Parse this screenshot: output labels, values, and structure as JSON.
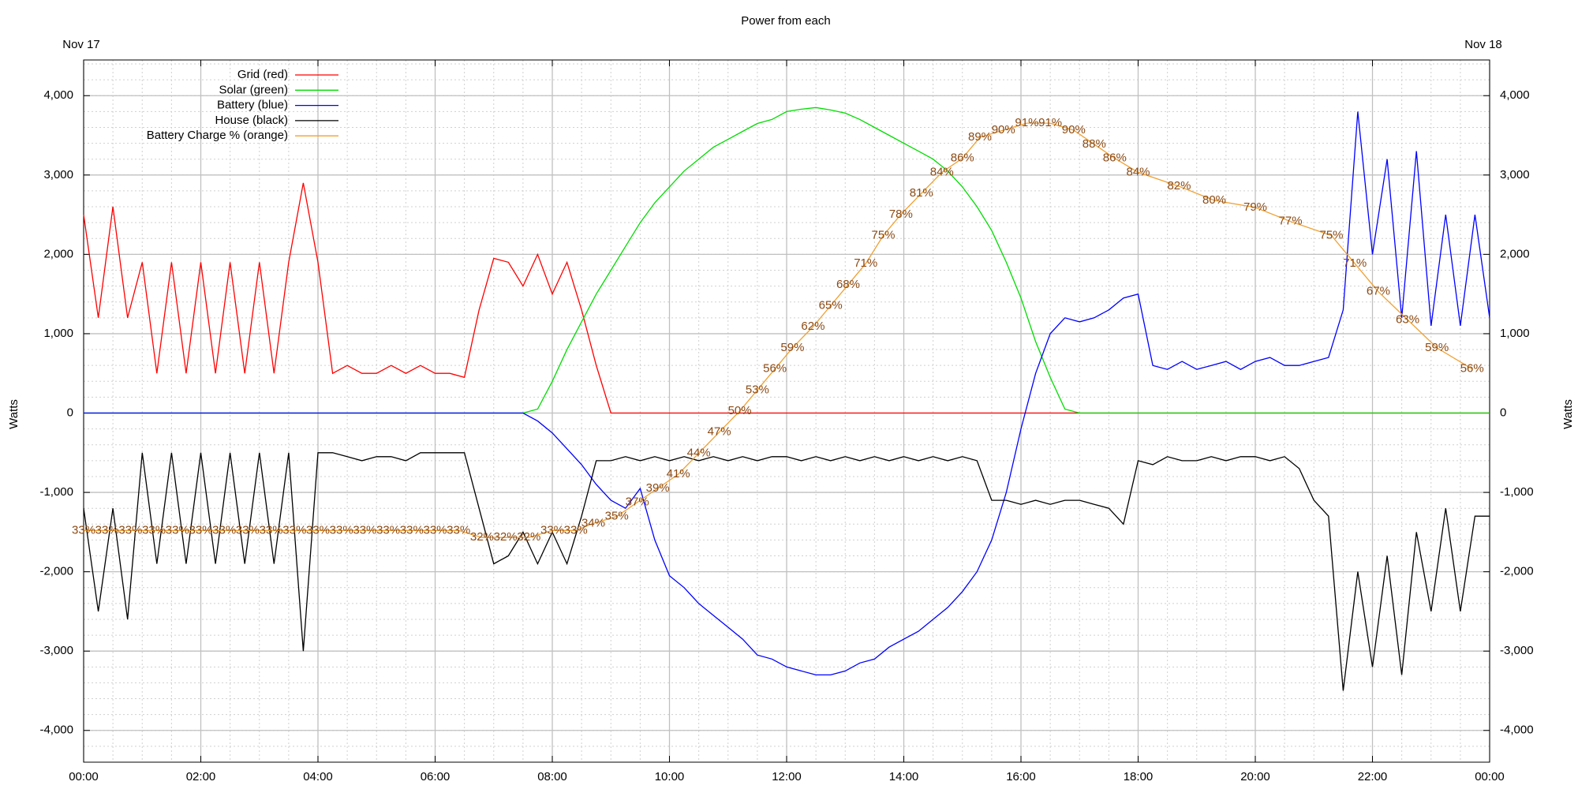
{
  "chart_data": {
    "type": "line",
    "title": "Power from each",
    "start_date": "Nov 17",
    "end_date": "Nov 18",
    "y_label": "Watts",
    "y2_label": "Watts",
    "grid": true,
    "legend_position": "top-left",
    "xlim": [
      0,
      24
    ],
    "xticks": [
      {
        "value": 0,
        "label": "00:00"
      },
      {
        "value": 2,
        "label": "02:00"
      },
      {
        "value": 4,
        "label": "04:00"
      },
      {
        "value": 6,
        "label": "06:00"
      },
      {
        "value": 8,
        "label": "08:00"
      },
      {
        "value": 10,
        "label": "10:00"
      },
      {
        "value": 12,
        "label": "12:00"
      },
      {
        "value": 14,
        "label": "14:00"
      },
      {
        "value": 16,
        "label": "16:00"
      },
      {
        "value": 18,
        "label": "18:00"
      },
      {
        "value": 20,
        "label": "20:00"
      },
      {
        "value": 22,
        "label": "22:00"
      },
      {
        "value": 24,
        "label": "00:00"
      }
    ],
    "xminor_step": 0.5,
    "ylim": [
      -4400,
      4450
    ],
    "yticks": [
      {
        "value": -4000,
        "label": "-4,000"
      },
      {
        "value": -3000,
        "label": "-3,000"
      },
      {
        "value": -2000,
        "label": "-2,000"
      },
      {
        "value": -1000,
        "label": "-1,000"
      },
      0,
      {
        "value": 1000,
        "label": "1,000"
      },
      {
        "value": 2000,
        "label": "2,000"
      },
      {
        "value": 3000,
        "label": "3,000"
      },
      {
        "value": 4000,
        "label": "4,000"
      }
    ],
    "y2lim": [
      -4400,
      4450
    ],
    "y2ticks": [
      {
        "value": -4000,
        "label": "-4,000"
      },
      {
        "value": -3000,
        "label": "-3,000"
      },
      {
        "value": -2000,
        "label": "-2,000"
      },
      {
        "value": -1000,
        "label": "-1,000"
      },
      0,
      {
        "value": 1000,
        "label": "1,000"
      },
      {
        "value": 2000,
        "label": "2,000"
      },
      {
        "value": 3000,
        "label": "3,000"
      },
      {
        "value": 4000,
        "label": "4,000"
      }
    ],
    "yminor_step": 200,
    "y3lim": [
      0,
      100
    ],
    "x": [
      0,
      0.25,
      0.5,
      0.75,
      1,
      1.25,
      1.5,
      1.75,
      2,
      2.25,
      2.5,
      2.75,
      3,
      3.25,
      3.5,
      3.75,
      4,
      4.25,
      4.5,
      4.75,
      5,
      5.25,
      5.5,
      5.75,
      6,
      6.25,
      6.5,
      6.75,
      7,
      7.25,
      7.5,
      7.75,
      8,
      8.25,
      8.5,
      8.75,
      9,
      9.25,
      9.5,
      9.75,
      10,
      10.25,
      10.5,
      10.75,
      11,
      11.25,
      11.5,
      11.75,
      12,
      12.25,
      12.5,
      12.75,
      13,
      13.25,
      13.5,
      13.75,
      14,
      14.25,
      14.5,
      14.75,
      15,
      15.25,
      15.5,
      15.75,
      16,
      16.25,
      16.5,
      16.75,
      17,
      17.25,
      17.5,
      17.75,
      18,
      18.25,
      18.5,
      18.75,
      19,
      19.25,
      19.5,
      19.75,
      20,
      20.25,
      20.5,
      20.75,
      21,
      21.25,
      21.5,
      21.75,
      22,
      22.25,
      22.5,
      22.75,
      23,
      23.25,
      23.5,
      23.75,
      24
    ],
    "series": [
      {
        "name": "Grid (red)",
        "color": "#ff0000",
        "values": [
          2500,
          1200,
          2600,
          1200,
          1900,
          500,
          1900,
          500,
          1900,
          500,
          1900,
          500,
          1900,
          500,
          1900,
          2900,
          1900,
          500,
          600,
          500,
          500,
          600,
          500,
          600,
          500,
          500,
          450,
          1300,
          1950,
          1900,
          1600,
          2000,
          1500,
          1900,
          1300,
          600,
          0,
          0,
          0,
          0,
          0,
          0,
          0,
          0,
          0,
          0,
          0,
          0,
          0,
          0,
          0,
          0,
          0,
          0,
          0,
          0,
          0,
          0,
          0,
          0,
          0,
          0,
          0,
          0,
          0,
          0,
          0,
          0,
          0,
          0,
          0,
          0,
          0,
          0,
          0,
          0,
          0,
          0,
          0,
          0,
          0,
          0,
          0,
          0,
          0,
          0,
          0,
          0,
          0,
          0,
          0,
          0,
          0,
          0,
          0,
          0,
          0
        ]
      },
      {
        "name": "Solar (green)",
        "color": "#00dd00",
        "values": [
          0,
          0,
          0,
          0,
          0,
          0,
          0,
          0,
          0,
          0,
          0,
          0,
          0,
          0,
          0,
          0,
          0,
          0,
          0,
          0,
          0,
          0,
          0,
          0,
          0,
          0,
          0,
          0,
          0,
          0,
          0,
          50,
          400,
          800,
          1150,
          1500,
          1800,
          2100,
          2400,
          2650,
          2850,
          3050,
          3200,
          3350,
          3450,
          3550,
          3650,
          3700,
          3800,
          3830,
          3850,
          3820,
          3780,
          3700,
          3600,
          3500,
          3400,
          3300,
          3200,
          3050,
          2850,
          2600,
          2300,
          1900,
          1450,
          900,
          450,
          50,
          0,
          0,
          0,
          0,
          0,
          0,
          0,
          0,
          0,
          0,
          0,
          0,
          0,
          0,
          0,
          0,
          0,
          0,
          0,
          0,
          0,
          0,
          0,
          0,
          0,
          0,
          0,
          0,
          0
        ]
      },
      {
        "name": "Battery (blue)",
        "color": "#0000ff",
        "values": [
          0,
          0,
          0,
          0,
          0,
          0,
          0,
          0,
          0,
          0,
          0,
          0,
          0,
          0,
          0,
          0,
          0,
          0,
          0,
          0,
          0,
          0,
          0,
          0,
          0,
          0,
          0,
          0,
          0,
          0,
          0,
          -100,
          -250,
          -450,
          -650,
          -900,
          -1100,
          -1200,
          -950,
          -1600,
          -2050,
          -2200,
          -2400,
          -2550,
          -2700,
          -2850,
          -3050,
          -3100,
          -3200,
          -3250,
          -3300,
          -3300,
          -3250,
          -3150,
          -3100,
          -2950,
          -2850,
          -2750,
          -2600,
          -2450,
          -2250,
          -2000,
          -1600,
          -1000,
          -200,
          500,
          1000,
          1200,
          1150,
          1200,
          1300,
          1450,
          1500,
          600,
          550,
          650,
          550,
          600,
          650,
          550,
          650,
          700,
          600,
          600,
          650,
          700,
          1300,
          3800,
          2000,
          3200,
          1200,
          3300,
          1100,
          2500,
          1100,
          2500,
          1200
        ]
      },
      {
        "name": "House (black)",
        "color": "#000000",
        "values": [
          -1200,
          -2500,
          -1200,
          -2600,
          -500,
          -1900,
          -500,
          -1900,
          -500,
          -1900,
          -500,
          -1900,
          -500,
          -1900,
          -500,
          -3000,
          -500,
          -500,
          -550,
          -600,
          -550,
          -550,
          -600,
          -500,
          -500,
          -500,
          -500,
          -1200,
          -1900,
          -1800,
          -1500,
          -1900,
          -1500,
          -1900,
          -1300,
          -600,
          -600,
          -550,
          -600,
          -550,
          -600,
          -550,
          -600,
          -550,
          -600,
          -550,
          -600,
          -550,
          -550,
          -600,
          -550,
          -600,
          -550,
          -600,
          -550,
          -600,
          -550,
          -600,
          -550,
          -600,
          -550,
          -600,
          -1100,
          -1100,
          -1150,
          -1100,
          -1150,
          -1100,
          -1100,
          -1150,
          -1200,
          -1400,
          -600,
          -650,
          -550,
          -600,
          -600,
          -550,
          -600,
          -550,
          -550,
          -600,
          -550,
          -700,
          -1100,
          -1300,
          -3500,
          -2000,
          -3200,
          -1800,
          -3300,
          -1500,
          -2500,
          -1200,
          -2500,
          -1300,
          -1300
        ]
      },
      {
        "name": "Battery Charge % (orange)",
        "color": "#f0a030",
        "label_color": "#8b4a14",
        "axis": "y3",
        "x": [
          0,
          0.4,
          0.8,
          1.2,
          1.6,
          2,
          2.4,
          2.8,
          3.2,
          3.6,
          4,
          4.4,
          4.8,
          5.2,
          5.6,
          6,
          6.4,
          6.8,
          7.2,
          7.6,
          8,
          8.4,
          8.7,
          9.1,
          9.45,
          9.8,
          10.15,
          10.5,
          10.85,
          11.2,
          11.5,
          11.8,
          12.1,
          12.45,
          12.75,
          13.05,
          13.35,
          13.65,
          13.95,
          14.3,
          14.65,
          15,
          15.3,
          15.7,
          16.1,
          16.5,
          16.9,
          17.25,
          17.6,
          18,
          18.7,
          19.3,
          20,
          20.6,
          21.3,
          21.7,
          22.1,
          22.6,
          23.1,
          23.7
        ],
        "values": [
          33,
          33,
          33,
          33,
          33,
          33,
          33,
          33,
          33,
          33,
          33,
          33,
          33,
          33,
          33,
          33,
          33,
          32,
          32,
          32,
          33,
          33,
          34,
          35,
          37,
          39,
          41,
          44,
          47,
          50,
          53,
          56,
          59,
          62,
          65,
          68,
          71,
          75,
          78,
          81,
          84,
          86,
          89,
          90,
          91,
          91,
          90,
          88,
          86,
          84,
          82,
          80,
          79,
          77,
          75,
          71,
          67,
          63,
          59,
          56
        ],
        "value_labels": [
          "33%",
          "33%",
          "33%",
          "33%",
          "33%",
          "33%",
          "33%",
          "33%",
          "33%",
          "33%",
          "33%",
          "33%",
          "33%",
          "33%",
          "33%",
          "33%",
          "33%",
          "32%",
          "32%",
          "32%",
          "33%",
          "33%",
          "34%",
          "35%",
          "37%",
          "39%",
          "41%",
          "44%",
          "47%",
          "50%",
          "53%",
          "56%",
          "59%",
          "62%",
          "65%",
          "68%",
          "71%",
          "75%",
          "78%",
          "81%",
          "84%",
          "86%",
          "89%",
          "90%",
          "91%",
          "91%",
          "90%",
          "88%",
          "86%",
          "84%",
          "82%",
          "80%",
          "79%",
          "77%",
          "75%",
          "71%",
          "67%",
          "63%",
          "59%",
          "56%"
        ]
      }
    ]
  }
}
